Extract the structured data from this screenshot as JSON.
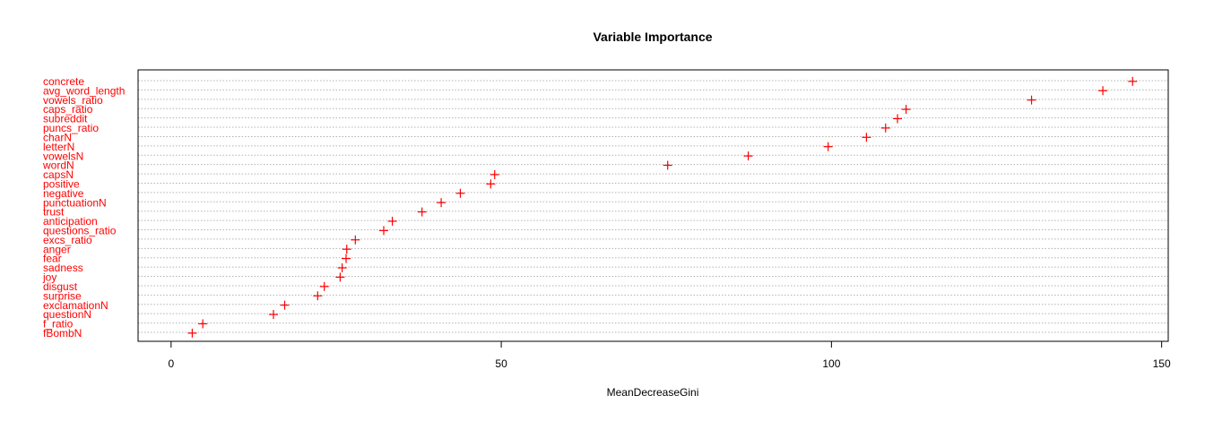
{
  "chart_data": {
    "type": "scatter",
    "title": "Variable Importance",
    "xlabel": "MeanDecreaseGini",
    "ylabel": "",
    "xlim": [
      -5,
      151
    ],
    "xticks": [
      0,
      50,
      100,
      150
    ],
    "grid": true,
    "marker": "+",
    "accent_color": "#ff0000",
    "categories": [
      "concrete",
      "avg_word_length",
      "vowels_ratio",
      "caps_ratio",
      "subreddit",
      "puncs_ratio",
      "charN",
      "letterN",
      "vowelsN",
      "wordN",
      "capsN",
      "positive",
      "negative",
      "punctuationN",
      "trust",
      "anticipation",
      "questions_ratio",
      "excs_ratio",
      "anger",
      "fear",
      "sadness",
      "joy",
      "disgust",
      "surprise",
      "exclamationN",
      "questionN",
      "f_ratio",
      "fBombN"
    ],
    "values": [
      145.6,
      141.1,
      130.3,
      111.3,
      110.0,
      108.2,
      105.3,
      99.5,
      87.4,
      75.2,
      49.0,
      48.4,
      43.8,
      40.9,
      38.0,
      33.5,
      32.2,
      27.9,
      26.6,
      26.5,
      25.9,
      25.6,
      23.2,
      22.2,
      17.2,
      15.5,
      4.8,
      3.2
    ]
  }
}
